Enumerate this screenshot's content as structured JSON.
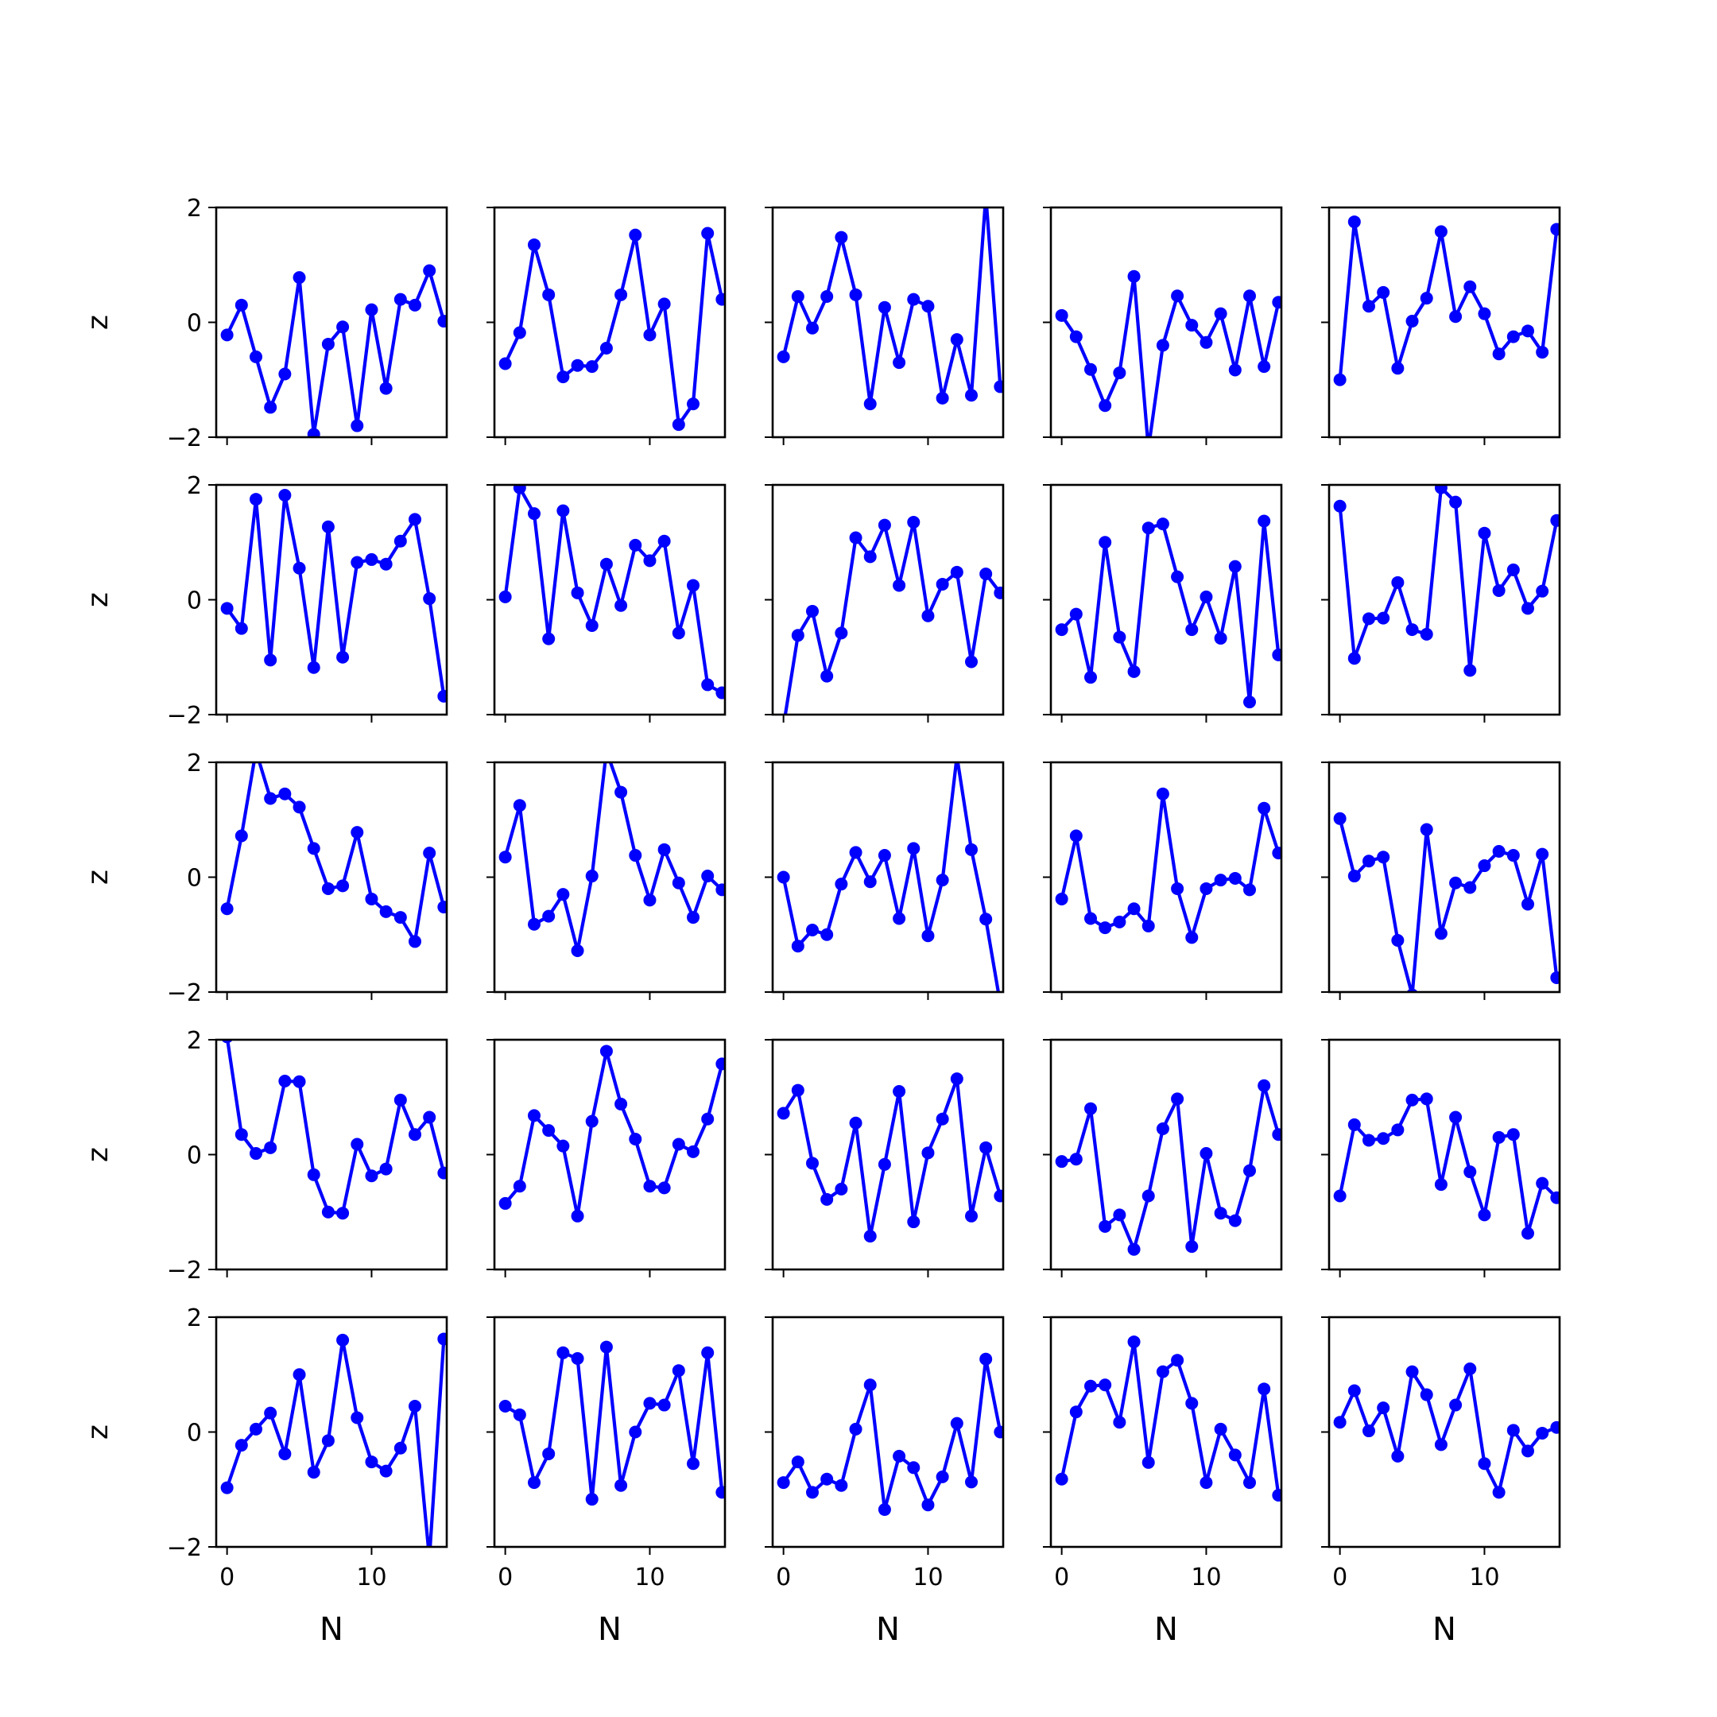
{
  "figure": {
    "line_color": "#0000ff",
    "axis_color": "#000000",
    "background": "#ffffff"
  },
  "chart_data": {
    "type": "line",
    "layout": "5x5 grid of small multiples, shared x and y axes",
    "xlabel": "N",
    "ylabel": "z",
    "xlim": [
      -0.75,
      15.2
    ],
    "ylim": [
      -2,
      2
    ],
    "xticks": [
      0,
      10
    ],
    "yticks": [
      -2,
      0,
      2
    ],
    "grid": false,
    "marker": "circle",
    "x": [
      0,
      1,
      2,
      3,
      4,
      5,
      6,
      7,
      8,
      9,
      10,
      11,
      12,
      13,
      14,
      15
    ],
    "series": [
      {
        "row": 0,
        "col": 0,
        "values": [
          -0.22,
          0.3,
          -0.6,
          -1.48,
          -0.9,
          0.78,
          -1.95,
          -0.38,
          -0.08,
          -1.8,
          0.22,
          -1.15,
          0.4,
          0.3,
          0.9,
          0.02
        ]
      },
      {
        "row": 0,
        "col": 1,
        "values": [
          -0.72,
          -0.18,
          1.35,
          0.48,
          -0.95,
          -0.75,
          -0.77,
          -0.45,
          0.48,
          1.52,
          -0.22,
          0.32,
          -1.78,
          -1.42,
          1.55,
          0.4
        ]
      },
      {
        "row": 0,
        "col": 2,
        "values": [
          -0.6,
          0.45,
          -0.1,
          0.45,
          1.48,
          0.48,
          -1.42,
          0.26,
          -0.7,
          0.4,
          0.28,
          -1.32,
          -0.3,
          -1.27,
          2.2,
          -1.12
        ]
      },
      {
        "row": 0,
        "col": 3,
        "values": [
          0.12,
          -0.25,
          -0.82,
          -1.45,
          -0.88,
          0.8,
          -2.2,
          -0.4,
          0.46,
          -0.05,
          -0.35,
          0.15,
          -0.83,
          0.46,
          -0.77,
          0.35
        ]
      },
      {
        "row": 0,
        "col": 4,
        "values": [
          -1.0,
          1.75,
          0.28,
          0.52,
          -0.8,
          0.02,
          0.42,
          1.58,
          0.1,
          0.62,
          0.15,
          -0.55,
          -0.25,
          -0.15,
          -0.52,
          1.62
        ]
      },
      {
        "row": 1,
        "col": 0,
        "values": [
          -0.15,
          -0.5,
          1.75,
          -1.05,
          1.82,
          0.55,
          -1.18,
          1.27,
          -1.0,
          0.65,
          0.7,
          0.62,
          1.02,
          1.4,
          0.02,
          -1.68
        ]
      },
      {
        "row": 1,
        "col": 1,
        "values": [
          0.05,
          1.95,
          1.5,
          -0.68,
          1.55,
          0.12,
          -0.45,
          0.62,
          -0.1,
          0.95,
          0.68,
          1.02,
          -0.58,
          0.25,
          -1.48,
          -1.62
        ]
      },
      {
        "row": 1,
        "col": 2,
        "values": [
          -2.2,
          -0.62,
          -0.2,
          -1.33,
          -0.58,
          1.08,
          0.75,
          1.3,
          0.25,
          1.35,
          -0.28,
          0.27,
          0.48,
          -1.08,
          0.45,
          0.12
        ]
      },
      {
        "row": 1,
        "col": 3,
        "values": [
          -0.52,
          -0.25,
          -1.35,
          1.0,
          -0.65,
          -1.25,
          1.25,
          1.32,
          0.4,
          -0.52,
          0.05,
          -0.67,
          0.58,
          -1.78,
          1.37,
          -0.96
        ]
      },
      {
        "row": 1,
        "col": 4,
        "values": [
          1.63,
          -1.02,
          -0.33,
          -0.32,
          0.3,
          -0.52,
          -0.6,
          1.95,
          1.7,
          -1.23,
          1.16,
          0.16,
          0.52,
          -0.15,
          0.15,
          1.38
        ]
      },
      {
        "row": 2,
        "col": 0,
        "values": [
          -0.55,
          0.72,
          2.2,
          1.37,
          1.45,
          1.22,
          0.5,
          -0.2,
          -0.15,
          0.78,
          -0.38,
          -0.6,
          -0.7,
          -1.12,
          0.42,
          -0.52
        ]
      },
      {
        "row": 2,
        "col": 1,
        "values": [
          0.35,
          1.25,
          -0.82,
          -0.68,
          -0.3,
          -1.28,
          0.02,
          2.2,
          1.48,
          0.38,
          -0.4,
          0.48,
          -0.1,
          -0.7,
          0.02,
          -0.22
        ]
      },
      {
        "row": 2,
        "col": 2,
        "values": [
          0.0,
          -1.2,
          -0.92,
          -1.0,
          -0.12,
          0.43,
          -0.08,
          0.38,
          -0.72,
          0.5,
          -1.02,
          -0.05,
          2.1,
          0.48,
          -0.73,
          -2.2
        ]
      },
      {
        "row": 2,
        "col": 3,
        "values": [
          -0.38,
          0.72,
          -0.72,
          -0.88,
          -0.78,
          -0.55,
          -0.85,
          1.45,
          -0.2,
          -1.05,
          -0.2,
          -0.05,
          -0.02,
          -0.22,
          1.2,
          0.42
        ]
      },
      {
        "row": 2,
        "col": 4,
        "values": [
          1.02,
          0.02,
          0.28,
          0.35,
          -1.1,
          -2.05,
          0.83,
          -0.98,
          -0.1,
          -0.18,
          0.2,
          0.45,
          0.38,
          -0.47,
          0.4,
          -1.75
        ]
      },
      {
        "row": 3,
        "col": 0,
        "values": [
          2.05,
          0.35,
          0.02,
          0.12,
          1.28,
          1.27,
          -0.35,
          -1.0,
          -1.02,
          0.18,
          -0.37,
          -0.25,
          0.95,
          0.35,
          0.65,
          -0.32
        ]
      },
      {
        "row": 3,
        "col": 1,
        "values": [
          -0.85,
          -0.55,
          0.68,
          0.42,
          0.15,
          -1.07,
          0.58,
          1.8,
          0.88,
          0.27,
          -0.55,
          -0.58,
          0.18,
          0.05,
          0.62,
          1.58
        ]
      },
      {
        "row": 3,
        "col": 2,
        "values": [
          0.72,
          1.12,
          -0.15,
          -0.78,
          -0.6,
          0.55,
          -1.42,
          -0.17,
          1.1,
          -1.17,
          0.03,
          0.62,
          1.32,
          -1.07,
          0.12,
          -0.72
        ]
      },
      {
        "row": 3,
        "col": 3,
        "values": [
          -0.12,
          -0.08,
          0.8,
          -1.25,
          -1.05,
          -1.65,
          -0.72,
          0.45,
          0.97,
          -1.6,
          0.02,
          -1.02,
          -1.15,
          -0.28,
          1.2,
          0.35
        ]
      },
      {
        "row": 3,
        "col": 4,
        "values": [
          -0.72,
          0.52,
          0.25,
          0.28,
          0.43,
          0.95,
          0.97,
          -0.52,
          0.65,
          -0.3,
          -1.05,
          0.3,
          0.35,
          -1.37,
          -0.5,
          -0.75
        ]
      },
      {
        "row": 4,
        "col": 0,
        "values": [
          -0.97,
          -0.23,
          0.05,
          0.33,
          -0.38,
          1.0,
          -0.7,
          -0.15,
          1.6,
          0.25,
          -0.52,
          -0.68,
          -0.28,
          0.45,
          -2.2,
          1.62
        ]
      },
      {
        "row": 4,
        "col": 1,
        "values": [
          0.45,
          0.3,
          -0.88,
          -0.38,
          1.38,
          1.28,
          -1.17,
          1.48,
          -0.93,
          0.0,
          0.5,
          0.47,
          1.07,
          -0.55,
          1.38,
          -1.05
        ]
      },
      {
        "row": 4,
        "col": 2,
        "values": [
          -0.88,
          -0.52,
          -1.05,
          -0.82,
          -0.93,
          0.05,
          0.82,
          -1.35,
          -0.42,
          -0.62,
          -1.27,
          -0.78,
          0.15,
          -0.87,
          1.27,
          0.0
        ]
      },
      {
        "row": 4,
        "col": 3,
        "values": [
          -0.82,
          0.35,
          0.8,
          0.82,
          0.17,
          1.57,
          -0.53,
          1.05,
          1.25,
          0.5,
          -0.88,
          0.05,
          -0.4,
          -0.88,
          0.75,
          -1.1
        ]
      },
      {
        "row": 4,
        "col": 4,
        "values": [
          0.17,
          0.72,
          0.02,
          0.42,
          -0.42,
          1.05,
          0.65,
          -0.22,
          0.47,
          1.1,
          -0.55,
          -1.05,
          0.03,
          -0.33,
          -0.02,
          0.08
        ]
      }
    ]
  }
}
